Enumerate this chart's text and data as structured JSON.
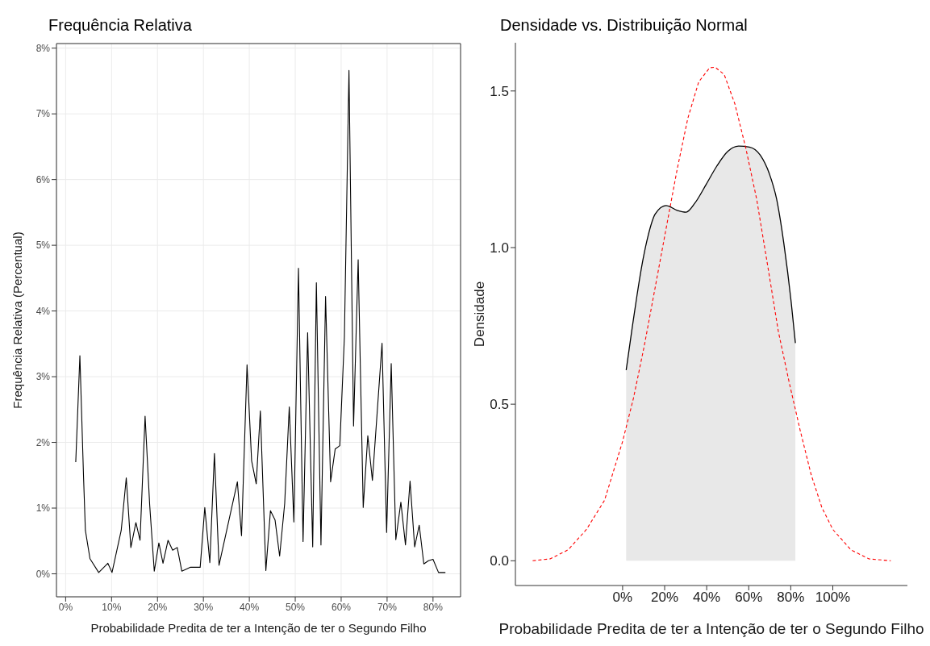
{
  "chart_data": [
    {
      "type": "line",
      "title": "Frequência Relativa",
      "xlabel": "Probabilidade Predita de ter a Intenção de ter o Segundo Filho",
      "ylabel": "Frequência Relativa (Percentual)",
      "grid": true,
      "xlim": [
        -2,
        86
      ],
      "xticks": [
        {
          "value": 0,
          "label": "0%"
        },
        {
          "value": 10,
          "label": "10%"
        },
        {
          "value": 20,
          "label": "20%"
        },
        {
          "value": 30,
          "label": "30%"
        },
        {
          "value": 40,
          "label": "40%"
        },
        {
          "value": 50,
          "label": "50%"
        },
        {
          "value": 60,
          "label": "60%"
        },
        {
          "value": 70,
          "label": "70%"
        },
        {
          "value": 80,
          "label": "80%"
        }
      ],
      "ylim": [
        -0.35,
        8.07
      ],
      "yticks": [
        {
          "value": 0,
          "label": "0%"
        },
        {
          "value": 1,
          "label": "1%"
        },
        {
          "value": 2,
          "label": "2%"
        },
        {
          "value": 3,
          "label": "3%"
        },
        {
          "value": 4,
          "label": "4%"
        },
        {
          "value": 5,
          "label": "5%"
        },
        {
          "value": 6,
          "label": "6%"
        },
        {
          "value": 7,
          "label": "7%"
        },
        {
          "value": 8,
          "label": "8%"
        }
      ],
      "series": [
        {
          "color": "#000000",
          "x": [
            2.2,
            3.1,
            3.9,
            4.3,
            5.3,
            7.2,
            9.2,
            10.1,
            12.1,
            13.2,
            14.2,
            15.3,
            16.2,
            17.3,
            18.3,
            19.3,
            20.3,
            21.2,
            22.3,
            23.3,
            24.3,
            25.3,
            27.2,
            29.3,
            30.3,
            31.4,
            32.4,
            33.4,
            37.4,
            38.3,
            39.5,
            40.5,
            41.5,
            42.4,
            43.6,
            44.6,
            45.6,
            46.6,
            47.7,
            48.7,
            49.7,
            50.7,
            51.7,
            52.7,
            53.8,
            54.6,
            55.6,
            56.6,
            57.7,
            58.7,
            59.7,
            60.7,
            61.7,
            62.7,
            63.7,
            64.8,
            65.8,
            66.8,
            68.9,
            69.9,
            70.9,
            71.9,
            73.0,
            74.0,
            75.0,
            76.0,
            77.0,
            78.0,
            79.0,
            80.0,
            81.2,
            82.7
          ],
          "values": [
            1.7,
            3.32,
            1.47,
            0.66,
            0.23,
            0.02,
            0.16,
            0.02,
            0.66,
            1.46,
            0.4,
            0.78,
            0.51,
            2.4,
            1.05,
            0.04,
            0.47,
            0.16,
            0.51,
            0.36,
            0.4,
            0.04,
            0.1,
            0.1,
            1.01,
            0.17,
            1.83,
            0.13,
            1.4,
            0.58,
            3.18,
            1.72,
            1.37,
            2.48,
            0.05,
            0.96,
            0.82,
            0.27,
            1.07,
            2.54,
            0.79,
            4.65,
            0.49,
            3.67,
            0.41,
            4.43,
            0.44,
            4.22,
            1.4,
            1.9,
            1.95,
            3.6,
            7.66,
            2.25,
            4.78,
            1.01,
            2.1,
            1.42,
            3.51,
            0.63,
            3.2,
            0.52,
            1.09,
            0.44,
            1.41,
            0.41,
            0.74,
            0.15,
            0.2,
            0.22,
            0.02,
            0.02
          ]
        }
      ]
    },
    {
      "type": "area",
      "title": "Densidade vs. Distribuição Normal",
      "xlabel": "Probabilidade Predita de ter a Intenção de ter o Segundo Filho",
      "ylabel": "Densidade",
      "grid": false,
      "xlim": [
        -51,
        135.5
      ],
      "xticks": [
        {
          "value": 0,
          "label": "0%"
        },
        {
          "value": 20,
          "label": "20%"
        },
        {
          "value": 40,
          "label": "40%"
        },
        {
          "value": 60,
          "label": "60%"
        },
        {
          "value": 80,
          "label": "80%"
        },
        {
          "value": 100,
          "label": "100%"
        }
      ],
      "ylim": [
        -0.079,
        1.654
      ],
      "yticks": [
        {
          "value": 0,
          "label": "0.0"
        },
        {
          "value": 0.5,
          "label": "0.5"
        },
        {
          "value": 1,
          "label": "1.0"
        },
        {
          "value": 1.5,
          "label": "1.5"
        }
      ],
      "series": [
        {
          "type": "area",
          "color": "#000000",
          "x": [
            1.7,
            4.3,
            6.9,
            9.5,
            12.1,
            15.5,
            20.7,
            25.9,
            30.2,
            34.5,
            39.7,
            44.8,
            50.0,
            55.2,
            60.3,
            65.5,
            69.8,
            73.3,
            76.7,
            80.2,
            82.2
          ],
          "values": [
            0.609,
            0.732,
            0.85,
            0.955,
            1.037,
            1.107,
            1.134,
            1.119,
            1.113,
            1.143,
            1.201,
            1.26,
            1.307,
            1.324,
            1.321,
            1.295,
            1.236,
            1.154,
            1.014,
            0.826,
            0.695
          ]
        },
        {
          "type": "line",
          "color": "#ff0000",
          "line_style": "dashed",
          "x": [
            -42.8,
            -34.5,
            -25.9,
            -17.2,
            -8.6,
            0,
            5.2,
            10.3,
            15.5,
            20.7,
            25.9,
            31.0,
            36.2,
            41.4,
            44.0,
            48.3,
            53.4,
            58.6,
            63.8,
            69.0,
            74.1,
            79.3,
            84.5,
            89.7,
            94.8,
            100,
            108.6,
            117.2,
            127.6
          ],
          "values": [
            0.0,
            0.006,
            0.035,
            0.1,
            0.193,
            0.381,
            0.52,
            0.686,
            0.873,
            1.061,
            1.248,
            1.412,
            1.529,
            1.574,
            1.576,
            1.553,
            1.459,
            1.318,
            1.154,
            0.943,
            0.732,
            0.568,
            0.416,
            0.275,
            0.17,
            0.1,
            0.035,
            0.006,
            0.0
          ]
        }
      ]
    }
  ]
}
